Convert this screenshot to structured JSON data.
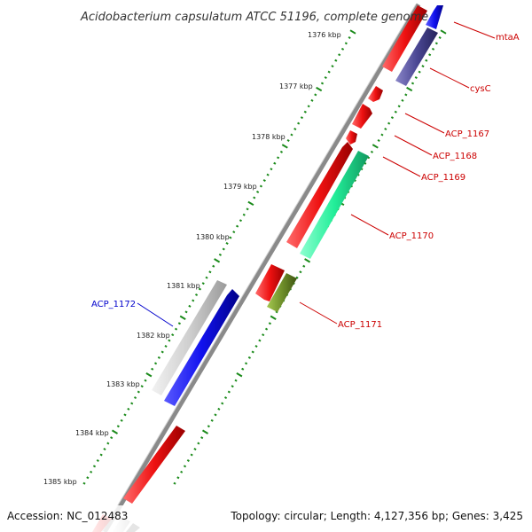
{
  "title": "Acidobacterium capsulatum ATCC 51196, complete genome",
  "footer": {
    "accession": "Accession: NC_012483",
    "summary": "Topology: circular; Length: 4,127,356 bp; Genes: 3,425"
  },
  "colors": {
    "backbone": "#8a8a8a",
    "forward_cds": "#ee1111",
    "reverse_cds": "#1111ee",
    "tick": "#1a8a1a",
    "label_forward": "#cc0000",
    "label_reverse": "#0000cc"
  },
  "kbp_ticks": [
    "1376 kbp",
    "1377 kbp",
    "1378 kbp",
    "1379 kbp",
    "1380 kbp",
    "1381 kbp",
    "1382 kbp",
    "1383 kbp",
    "1384 kbp",
    "1385 kbp"
  ],
  "genes": [
    {
      "label": "mtaA",
      "color": "#cc0000"
    },
    {
      "label": "cysC",
      "color": "#cc0000"
    },
    {
      "label": "ACP_1167",
      "color": "#cc0000"
    },
    {
      "label": "ACP_1168",
      "color": "#cc0000"
    },
    {
      "label": "ACP_1169",
      "color": "#cc0000"
    },
    {
      "label": "ACP_1170",
      "color": "#cc0000"
    },
    {
      "label": "ACP_1171",
      "color": "#cc0000"
    },
    {
      "label": "ACP_1172",
      "color": "#0000cc"
    }
  ]
}
